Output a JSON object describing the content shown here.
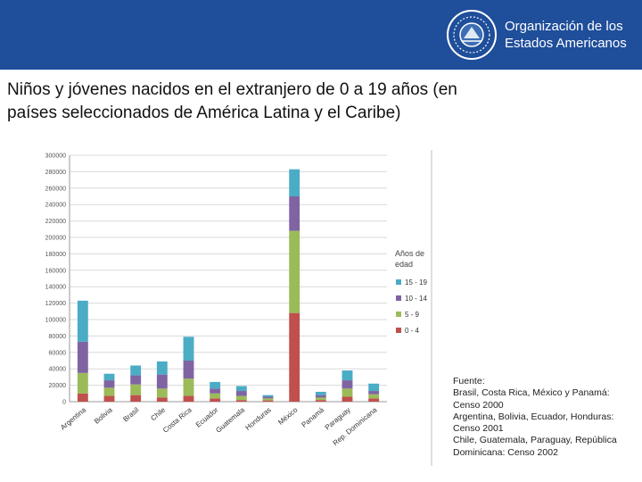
{
  "header": {
    "org_line1": "Organización de los",
    "org_line2": "Estados Americanos",
    "seal_icon": "oas-seal-icon",
    "color": "#1f4e9a"
  },
  "title_line1": "Niños y jóvenes nacidos en el extranjero de 0 a 19 años (en",
  "title_line2": "países seleccionados de América Latina y el Caribe)",
  "chart_data": {
    "type": "bar",
    "stacked": true,
    "categories": [
      "Argentina",
      "Bolivia",
      "Brasil",
      "Chile",
      "Costa Rica",
      "Ecuador",
      "Guatemala",
      "Honduras",
      "México",
      "Panamá",
      "Paraguay",
      "Rep. Dominicana"
    ],
    "series": [
      {
        "name": "0 - 4",
        "color": "#c0504d",
        "values": [
          10000,
          7000,
          8000,
          5000,
          7000,
          4000,
          2000,
          1500,
          108000,
          2000,
          6000,
          4000
        ]
      },
      {
        "name": "5 - 9",
        "color": "#9bbb59",
        "values": [
          25000,
          10000,
          13000,
          11000,
          21000,
          6000,
          5000,
          2500,
          100000,
          3000,
          10000,
          5000
        ]
      },
      {
        "name": "10 - 14",
        "color": "#8064a2",
        "values": [
          38000,
          9000,
          11000,
          17000,
          22000,
          6000,
          6000,
          2000,
          42000,
          3000,
          10000,
          4000
        ]
      },
      {
        "name": "15 - 19",
        "color": "#4bacc6",
        "values": [
          50000,
          8000,
          12000,
          16000,
          29000,
          8000,
          6000,
          2000,
          33000,
          4000,
          12000,
          9000
        ]
      }
    ],
    "ylim": [
      0,
      300000
    ],
    "yticks": [
      "0",
      "20000",
      "40000",
      "60000",
      "80000",
      "100000",
      "120000",
      "140000",
      "160000",
      "180000",
      "200000",
      "220000",
      "240000",
      "260000",
      "280000",
      "300000"
    ],
    "legend_title": "Años de edad",
    "legend_title_line1": "Años de",
    "legend_title_line2": "edad",
    "legend_order": [
      "15 - 19",
      "10 - 14",
      "5 - 9",
      "0 - 4"
    ],
    "legend_position": "right",
    "grid": true
  },
  "source": {
    "lines": [
      "Fuente:",
      "Brasil, Costa Rica, México y Panamá:",
      "Censo 2000",
      "Argentina, Bolivia, Ecuador, Honduras:",
      "Censo 2001",
      "Chile, Guatemala, Paraguay, República",
      "Dominicana: Censo 2002"
    ]
  }
}
